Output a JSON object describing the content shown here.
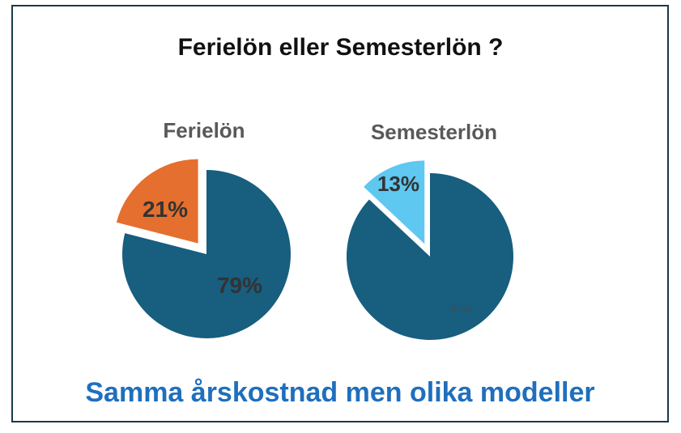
{
  "title": "Ferielön eller Semesterlön ?",
  "subtitle": "Samma årskostnad men olika modeller",
  "colors": {
    "ferie_large": "#175e7f",
    "ferie_small": "#e56f2e",
    "semester_large": "#175e7f",
    "semester_small": "#5ec8f0"
  },
  "chart_data": [
    {
      "type": "pie",
      "title": "Ferielön",
      "slices": [
        {
          "label": "21%",
          "value": 21,
          "exploded": true
        },
        {
          "label": "79%",
          "value": 79,
          "exploded": false
        }
      ]
    },
    {
      "type": "pie",
      "title": "Semesterlön",
      "slices": [
        {
          "label": "13%",
          "value": 13,
          "exploded": true
        },
        {
          "label": "87%",
          "value": 87,
          "exploded": false
        }
      ]
    }
  ]
}
